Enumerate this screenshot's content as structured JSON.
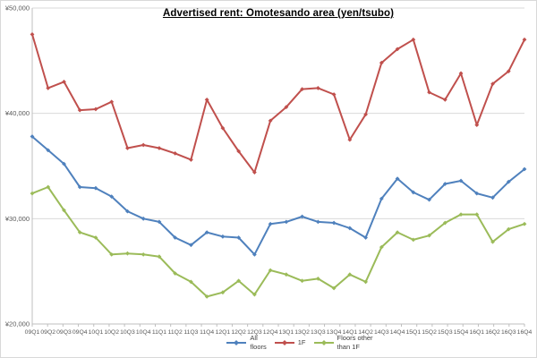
{
  "chart_data": {
    "type": "line",
    "title": "Advertised rent: Omotesando area (yen/tsubo)",
    "categories": [
      "09Q1",
      "09Q2",
      "09Q3",
      "09Q4",
      "10Q1",
      "10Q2",
      "10Q3",
      "10Q4",
      "11Q1",
      "11Q2",
      "11Q3",
      "11Q4",
      "12Q1",
      "12Q2",
      "12Q3",
      "12Q4",
      "13Q1",
      "13Q2",
      "13Q3",
      "13Q4",
      "14Q1",
      "14Q2",
      "14Q3",
      "14Q4",
      "15Q1",
      "15Q2",
      "15Q3",
      "15Q4",
      "16Q1",
      "16Q2",
      "16Q3",
      "16Q4"
    ],
    "y_axis": {
      "min": 20000,
      "max": 50000,
      "grid": true,
      "ticks": [
        {
          "label": "¥50,000",
          "value": 50000
        },
        {
          "label": "¥40,000",
          "value": 40000
        },
        {
          "label": "¥30,000",
          "value": 30000
        },
        {
          "label": "¥20,000",
          "value": 20000
        }
      ]
    },
    "series": [
      {
        "name": "All floors",
        "legend_label": "All\nfloors",
        "color": "#4F81BD",
        "values": [
          37800,
          36500,
          35200,
          33000,
          32900,
          32100,
          30700,
          30000,
          29700,
          28200,
          27500,
          28700,
          28300,
          28200,
          26600,
          29500,
          29700,
          30200,
          29700,
          29600,
          29100,
          28200,
          31900,
          33800,
          32500,
          31800,
          33300,
          33600,
          32400,
          32000,
          33500,
          34700
        ]
      },
      {
        "name": "1F",
        "legend_label": "1F",
        "color": "#C0504D",
        "values": [
          47500,
          42400,
          43000,
          40300,
          40400,
          41100,
          36700,
          37000,
          36700,
          36200,
          35600,
          41300,
          38600,
          36400,
          34400,
          39300,
          40600,
          42300,
          42400,
          41800,
          37500,
          39900,
          44800,
          46100,
          47000,
          42000,
          41300,
          43800,
          38900,
          42800,
          44000,
          47000
        ]
      },
      {
        "name": "Floors other than 1F",
        "legend_label": "Floors other\nthan 1F",
        "color": "#9BBB59",
        "values": [
          32400,
          33000,
          30800,
          28700,
          28200,
          26600,
          26700,
          26600,
          26400,
          24800,
          24000,
          22600,
          23000,
          24100,
          22800,
          25100,
          24700,
          24100,
          24300,
          23400,
          24700,
          24000,
          27300,
          28700,
          28000,
          28400,
          29600,
          30400,
          30400,
          27800,
          29000,
          29500
        ]
      }
    ],
    "legend_position": "bottom"
  },
  "colors": {
    "background": "#FFFFFF",
    "frame": "#D9D9D9",
    "grid": "#D9D9D9",
    "axis": "#BFBFBF",
    "tick_text": "#595959",
    "title_text": "#000000",
    "legend_text": "#404040"
  }
}
